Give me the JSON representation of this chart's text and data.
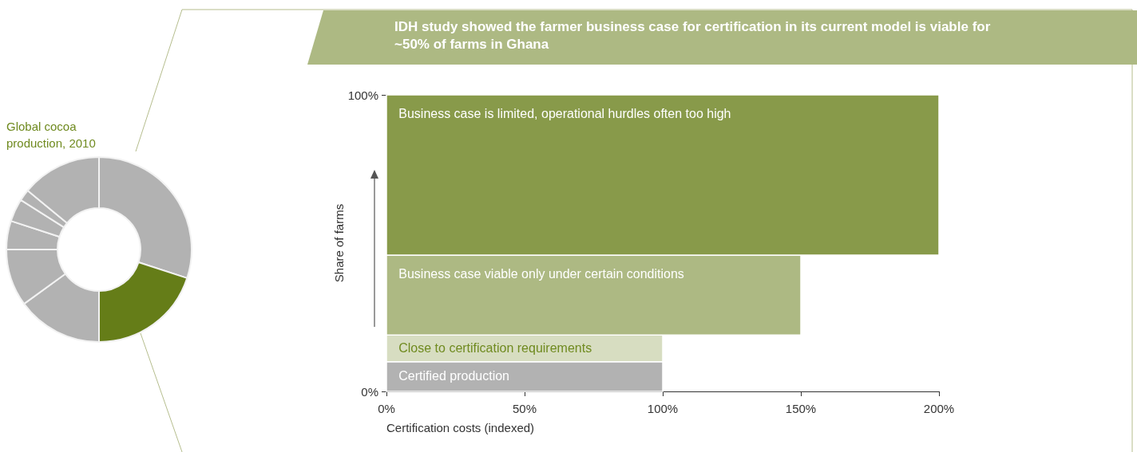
{
  "chart_data": [
    {
      "type": "donut",
      "title": "Global cocoa production, 2010",
      "categories": [
        null,
        null,
        null,
        null,
        null,
        null,
        null,
        null
      ],
      "values": [
        30,
        20,
        15,
        10,
        5,
        4,
        2,
        14
      ],
      "colors": [
        "#b2b2b2",
        "#657d18",
        "#b2b2b2",
        "#b2b2b2",
        "#b2b2b2",
        "#b2b2b2",
        "#b2b2b2",
        "#b2b2b2"
      ]
    },
    {
      "type": "histogram",
      "orientation": "horizontal",
      "title": "IDH study showed the farmer business case for certification in its current model is viable for ~50% of farms in Ghana",
      "xlabel": "Certification costs (indexed)",
      "ylabel": "Share of farms",
      "bins": [
        0,
        10,
        19,
        46,
        100
      ],
      "values": [
        100,
        100,
        150,
        200
      ],
      "colors": [
        "#b2b2b2",
        "#d7ddc1",
        "#adb983",
        "#889a4a"
      ],
      "xlim": [
        0,
        200
      ],
      "xticks": [
        {
          "value": 0,
          "label": "0%"
        },
        {
          "value": 50,
          "label": "50%"
        },
        {
          "value": 100,
          "label": "100%"
        },
        {
          "value": 150,
          "label": "150%"
        },
        {
          "value": 200,
          "label": "200%"
        }
      ],
      "ylim": [
        0,
        100
      ],
      "yticks": [
        {
          "value": 0,
          "label": "0%"
        },
        {
          "value": 100,
          "label": "100%"
        }
      ],
      "annotations": [
        "Certified production",
        "Close to certification requirements",
        "Business case viable only under certain conditions",
        "Business case is limited, operational hurdles often too high"
      ]
    }
  ]
}
